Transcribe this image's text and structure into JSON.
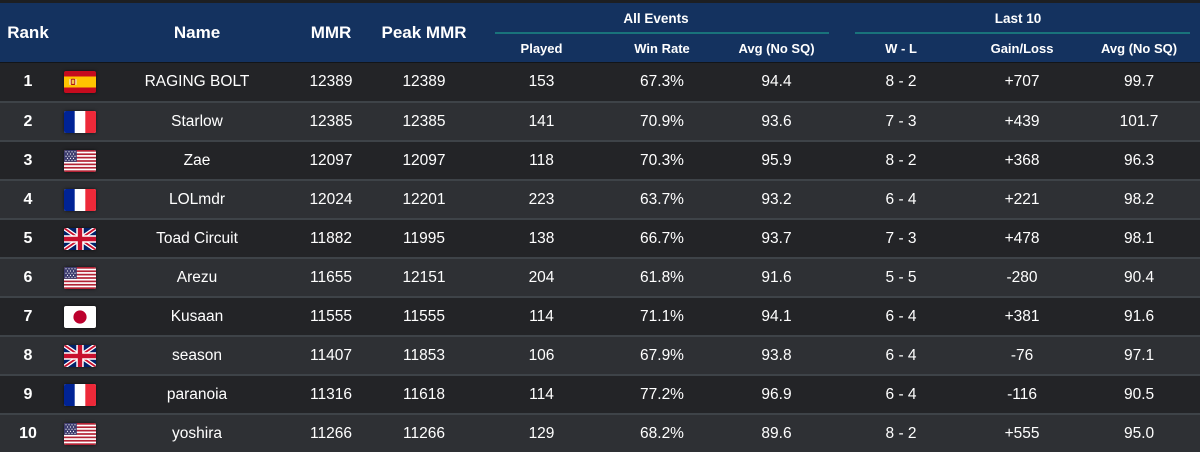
{
  "header": {
    "rank": "Rank",
    "name": "Name",
    "mmr": "MMR",
    "peak_mmr": "Peak MMR",
    "groups": [
      {
        "label": "All Events",
        "subcolumns": [
          "Played",
          "Win Rate",
          "Avg (No SQ)"
        ]
      },
      {
        "label": "Last 10",
        "subcolumns": [
          "W - L",
          "Gain/Loss",
          "Avg (No SQ)"
        ]
      }
    ]
  },
  "rows": [
    {
      "rank": "1",
      "flag": "spain",
      "name": "RAGING BOLT",
      "mmr": "12389",
      "peak": "12389",
      "played": "153",
      "win_rate": "67.3%",
      "avg": "94.4",
      "wl": "8 - 2",
      "gain_loss": "+707",
      "avg10": "99.7"
    },
    {
      "rank": "2",
      "flag": "france",
      "name": "Starlow",
      "mmr": "12385",
      "peak": "12385",
      "played": "141",
      "win_rate": "70.9%",
      "avg": "93.6",
      "wl": "7 - 3",
      "gain_loss": "+439",
      "avg10": "101.7"
    },
    {
      "rank": "3",
      "flag": "usa",
      "name": "Zae",
      "mmr": "12097",
      "peak": "12097",
      "played": "118",
      "win_rate": "70.3%",
      "avg": "95.9",
      "wl": "8 - 2",
      "gain_loss": "+368",
      "avg10": "96.3"
    },
    {
      "rank": "4",
      "flag": "france",
      "name": "LOLmdr",
      "mmr": "12024",
      "peak": "12201",
      "played": "223",
      "win_rate": "63.7%",
      "avg": "93.2",
      "wl": "6 - 4",
      "gain_loss": "+221",
      "avg10": "98.2"
    },
    {
      "rank": "5",
      "flag": "uk",
      "name": "Toad Circuit",
      "mmr": "11882",
      "peak": "11995",
      "played": "138",
      "win_rate": "66.7%",
      "avg": "93.7",
      "wl": "7 - 3",
      "gain_loss": "+478",
      "avg10": "98.1"
    },
    {
      "rank": "6",
      "flag": "usa",
      "name": "Arezu",
      "mmr": "11655",
      "peak": "12151",
      "played": "204",
      "win_rate": "61.8%",
      "avg": "91.6",
      "wl": "5 - 5",
      "gain_loss": "-280",
      "avg10": "90.4"
    },
    {
      "rank": "7",
      "flag": "japan",
      "name": "Kusaan",
      "mmr": "11555",
      "peak": "11555",
      "played": "114",
      "win_rate": "71.1%",
      "avg": "94.1",
      "wl": "6 - 4",
      "gain_loss": "+381",
      "avg10": "91.6"
    },
    {
      "rank": "8",
      "flag": "uk",
      "name": "season",
      "mmr": "11407",
      "peak": "11853",
      "played": "106",
      "win_rate": "67.9%",
      "avg": "93.8",
      "wl": "6 - 4",
      "gain_loss": "-76",
      "avg10": "97.1"
    },
    {
      "rank": "9",
      "flag": "france",
      "name": "paranoia",
      "mmr": "11316",
      "peak": "11618",
      "played": "114",
      "win_rate": "77.2%",
      "avg": "96.9",
      "wl": "6 - 4",
      "gain_loss": "-116",
      "avg10": "90.5"
    },
    {
      "rank": "10",
      "flag": "usa",
      "name": "yoshira",
      "mmr": "11266",
      "peak": "11266",
      "played": "129",
      "win_rate": "68.2%",
      "avg": "89.6",
      "wl": "8 - 2",
      "gain_loss": "+555",
      "avg10": "95.0"
    }
  ],
  "colors": {
    "header_bg": "#14325f",
    "underline": "#19737b",
    "row_dark": "#232427",
    "row_light": "#2e3034",
    "row_separator": "#3e4348",
    "text": "#ffffff"
  }
}
